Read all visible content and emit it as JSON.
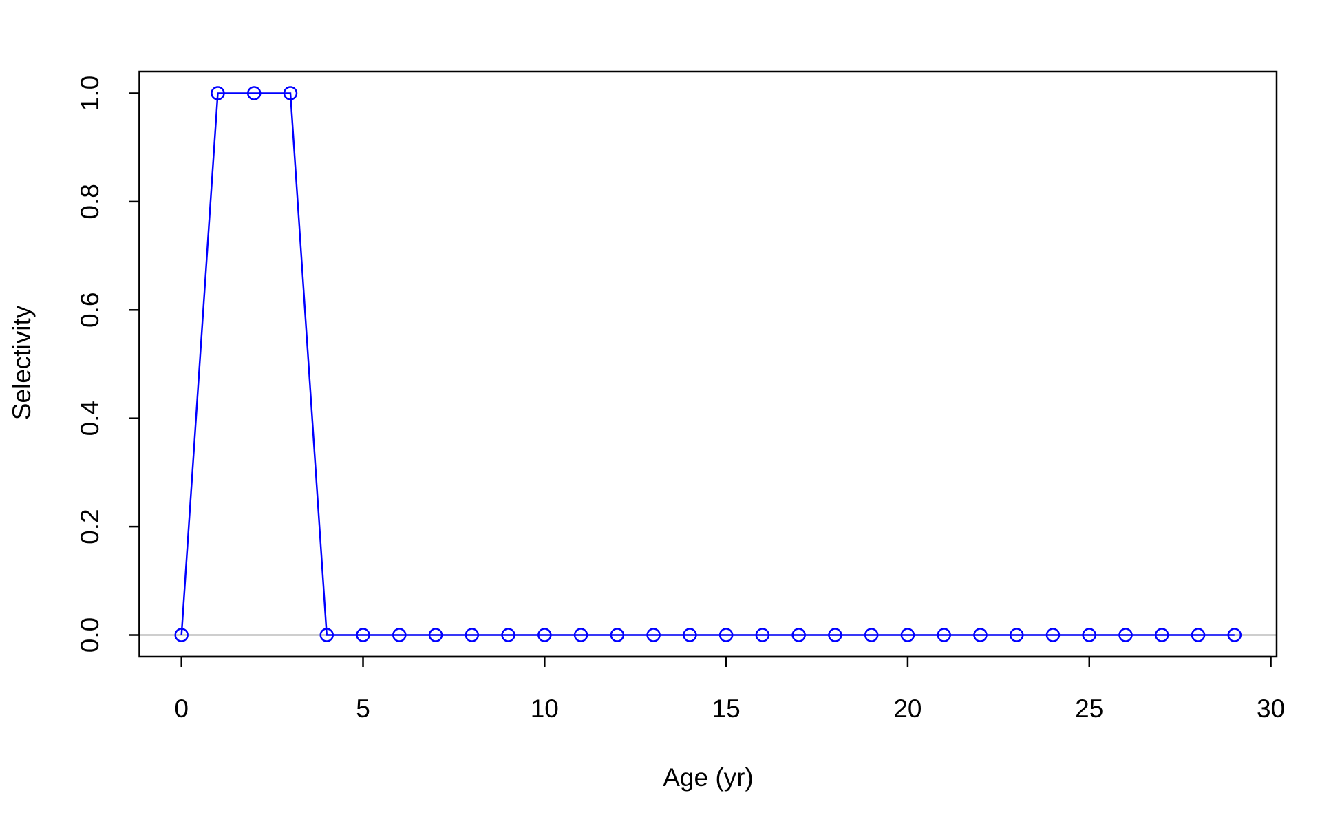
{
  "chart_data": {
    "type": "line",
    "x_label": "Age (yr)",
    "y_label": "Selectivity",
    "x": [
      0,
      1,
      2,
      3,
      4,
      5,
      6,
      7,
      8,
      9,
      10,
      11,
      12,
      13,
      14,
      15,
      16,
      17,
      18,
      19,
      20,
      21,
      22,
      23,
      24,
      25,
      26,
      27,
      28,
      29
    ],
    "series": [
      {
        "color": "#0000ff",
        "values": [
          0,
          1,
          1,
          1,
          0,
          0,
          0,
          0,
          0,
          0,
          0,
          0,
          0,
          0,
          0,
          0,
          0,
          0,
          0,
          0,
          0,
          0,
          0,
          0,
          0,
          0,
          0,
          0,
          0,
          0
        ]
      }
    ],
    "xlim": [
      -1.16,
      30.16
    ],
    "xticks": [
      0,
      5,
      10,
      15,
      20,
      25,
      30
    ],
    "ylim": [
      -0.04,
      1.04
    ],
    "yticks": [
      {
        "value": 0,
        "label": "0.0"
      },
      0.2,
      0.4,
      0.6,
      0.8,
      {
        "value": 1,
        "label": "1.0"
      }
    ],
    "reference_line": {
      "value": 0,
      "color": "#bebebe"
    },
    "markers": "open-circle"
  }
}
